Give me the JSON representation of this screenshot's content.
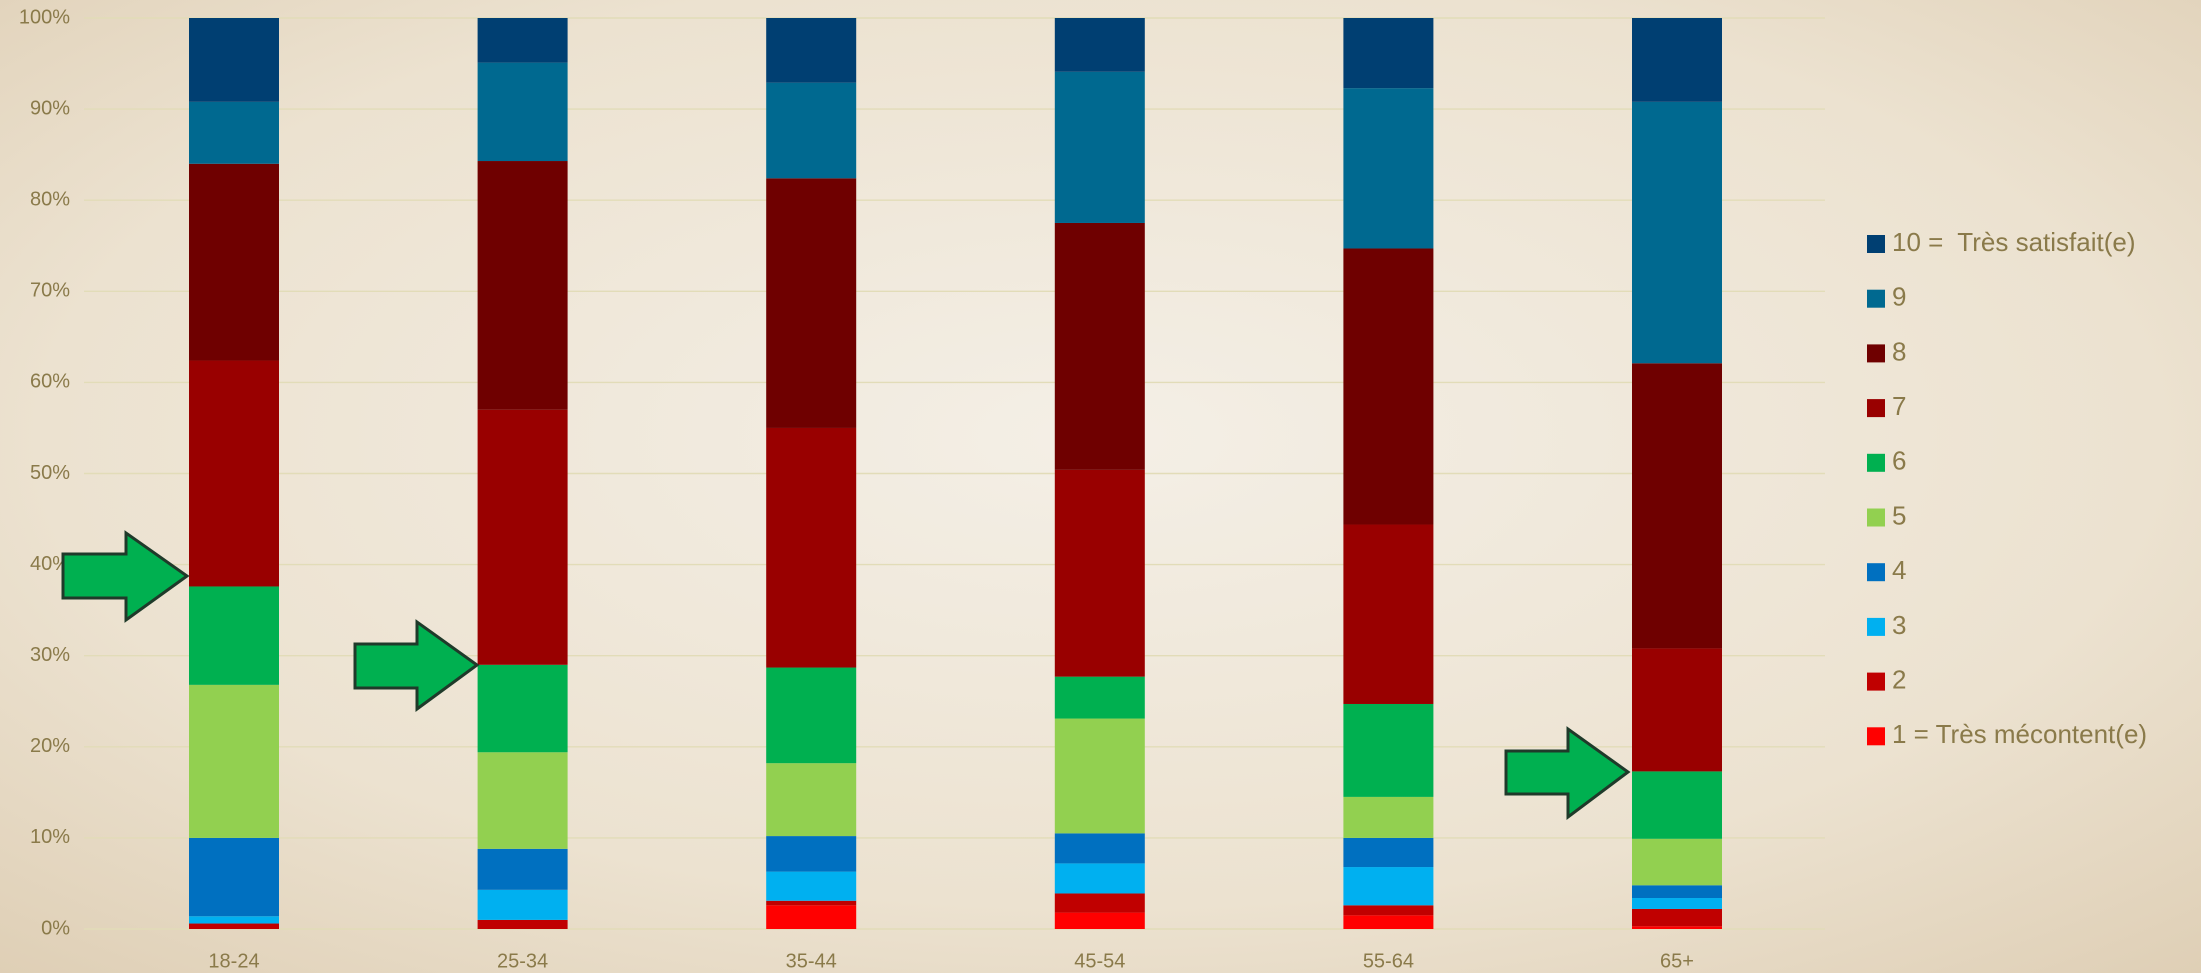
{
  "chart_data": {
    "type": "stacked_bar",
    "categories": [
      "18-24",
      "25-34",
      "35-44",
      "45-54",
      "55-64",
      "65+"
    ],
    "series": [
      {
        "name": "1 = Très mécontent(e)",
        "color": "#ff0000",
        "values": [
          0,
          0,
          2.6,
          1.8,
          1.5,
          0.3
        ]
      },
      {
        "name": "2",
        "color": "#c00000",
        "values": [
          0.6,
          1.0,
          0.5,
          2.1,
          1.1,
          1.9
        ]
      },
      {
        "name": "3",
        "color": "#00b0f0",
        "values": [
          0.8,
          3.3,
          3.2,
          3.3,
          4.2,
          1.2
        ]
      },
      {
        "name": "4",
        "color": "#0070c0",
        "values": [
          8.6,
          4.5,
          3.9,
          3.3,
          3.2,
          1.4
        ]
      },
      {
        "name": "5",
        "color": "#92d050",
        "values": [
          16.8,
          10.6,
          8.0,
          12.6,
          4.5,
          5.1
        ]
      },
      {
        "name": "6",
        "color": "#00b050",
        "values": [
          10.8,
          9.6,
          10.5,
          4.6,
          10.2,
          7.4
        ]
      },
      {
        "name": "7",
        "color": "#990000",
        "values": [
          24.8,
          28.0,
          26.3,
          22.7,
          19.7,
          13.5
        ]
      },
      {
        "name": "8",
        "color": "#6f0000",
        "values": [
          21.6,
          27.3,
          27.4,
          27.1,
          30.3,
          31.3
        ]
      },
      {
        "name": "9",
        "color": "#006990",
        "values": [
          6.8,
          10.8,
          10.5,
          16.6,
          17.6,
          28.7
        ]
      },
      {
        "name": "10 =  Très satisfait(e)",
        "color": "#003f72",
        "values": [
          9.2,
          4.9,
          7.1,
          5.9,
          7.7,
          9.2
        ]
      }
    ],
    "ylim": [
      0,
      100
    ],
    "yticks": [
      {
        "value": 0,
        "label": "0%"
      },
      {
        "value": 10,
        "label": "10%"
      },
      {
        "value": 20,
        "label": "20%"
      },
      {
        "value": 30,
        "label": "30%"
      },
      {
        "value": 40,
        "label": "40%"
      },
      {
        "value": 50,
        "label": "50%"
      },
      {
        "value": 60,
        "label": "60%"
      },
      {
        "value": 70,
        "label": "70%"
      },
      {
        "value": 80,
        "label": "80%"
      },
      {
        "value": 90,
        "label": "90%"
      },
      {
        "value": 100,
        "label": "100%"
      }
    ],
    "grid": true,
    "legend": "right"
  }
}
